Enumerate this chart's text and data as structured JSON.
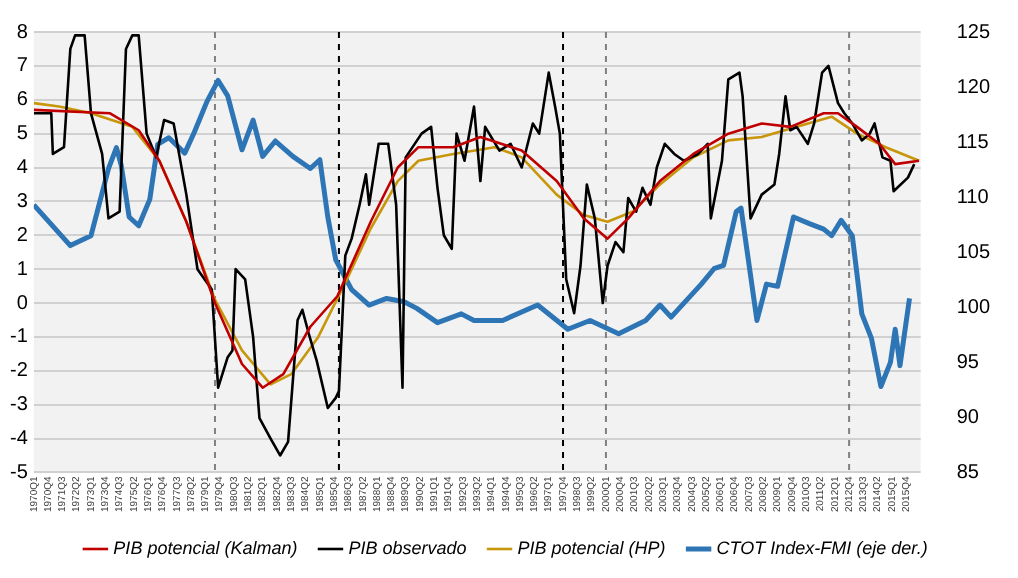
{
  "chart_data": {
    "type": "line",
    "marker": "none",
    "grid": "y",
    "legend": "bottom",
    "xlim": [
      "1970-01",
      "2016-07"
    ],
    "xticks": [
      {
        "value": "1970-01",
        "label": "1970Q1"
      },
      {
        "value": "1970-10",
        "label": "1970Q4"
      },
      {
        "value": "1971-07",
        "label": "1971Q3"
      },
      {
        "value": "1972-04",
        "label": "1972Q2"
      },
      {
        "value": "1973-01",
        "label": "1973Q1"
      },
      {
        "value": "1973-10",
        "label": "1973Q4"
      },
      {
        "value": "1974-07",
        "label": "1974Q3"
      },
      {
        "value": "1975-04",
        "label": "1975Q2"
      },
      {
        "value": "1976-01",
        "label": "1976Q1"
      },
      {
        "value": "1976-10",
        "label": "1976Q4"
      },
      {
        "value": "1977-07",
        "label": "1977Q3"
      },
      {
        "value": "1978-04",
        "label": "1978Q2"
      },
      {
        "value": "1979-01",
        "label": "1979Q1"
      },
      {
        "value": "1979-10",
        "label": "1979Q4"
      },
      {
        "value": "1980-07",
        "label": "1980Q3"
      },
      {
        "value": "1981-04",
        "label": "1981Q2"
      },
      {
        "value": "1982-01",
        "label": "1982Q1"
      },
      {
        "value": "1982-10",
        "label": "1982Q4"
      },
      {
        "value": "1983-07",
        "label": "1983Q3"
      },
      {
        "value": "1984-04",
        "label": "1984Q2"
      },
      {
        "value": "1985-01",
        "label": "1985Q1"
      },
      {
        "value": "1985-10",
        "label": "1985Q4"
      },
      {
        "value": "1986-07",
        "label": "1986Q3"
      },
      {
        "value": "1987-04",
        "label": "1987Q2"
      },
      {
        "value": "1988-01",
        "label": "1988Q1"
      },
      {
        "value": "1988-10",
        "label": "1988Q4"
      },
      {
        "value": "1989-07",
        "label": "1989Q3"
      },
      {
        "value": "1990-04",
        "label": "1990Q2"
      },
      {
        "value": "1991-01",
        "label": "1991Q1"
      },
      {
        "value": "1991-10",
        "label": "1991Q4"
      },
      {
        "value": "1992-07",
        "label": "1992Q3"
      },
      {
        "value": "1993-04",
        "label": "1993Q2"
      },
      {
        "value": "1994-01",
        "label": "1994Q1"
      },
      {
        "value": "1994-10",
        "label": "1994Q4"
      },
      {
        "value": "1995-07",
        "label": "1995Q3"
      },
      {
        "value": "1996-04",
        "label": "1996Q2"
      },
      {
        "value": "1997-01",
        "label": "1997Q1"
      },
      {
        "value": "1997-10",
        "label": "1997Q4"
      },
      {
        "value": "1998-07",
        "label": "1998Q3"
      },
      {
        "value": "1999-04",
        "label": "1999Q2"
      },
      {
        "value": "2000-01",
        "label": "2000Q1"
      },
      {
        "value": "2000-10",
        "label": "2000Q4"
      },
      {
        "value": "2001-07",
        "label": "2001Q3"
      },
      {
        "value": "2002-04",
        "label": "2002Q2"
      },
      {
        "value": "2003-01",
        "label": "2003Q1"
      },
      {
        "value": "2003-10",
        "label": "2003Q4"
      },
      {
        "value": "2004-07",
        "label": "2004Q3"
      },
      {
        "value": "2005-04",
        "label": "2005Q2"
      },
      {
        "value": "2006-01",
        "label": "2006Q1"
      },
      {
        "value": "2006-10",
        "label": "2006Q4"
      },
      {
        "value": "2007-07",
        "label": "2007Q3"
      },
      {
        "value": "2008-04",
        "label": "2008Q2"
      },
      {
        "value": "2009-01",
        "label": "2009Q1"
      },
      {
        "value": "2009-10",
        "label": "2009Q4"
      },
      {
        "value": "2010-07",
        "label": "2010Q3"
      },
      {
        "value": "2011-04",
        "label": "2011Q2"
      },
      {
        "value": "2012-01",
        "label": "2012Q1"
      },
      {
        "value": "2012-10",
        "label": "2012Q4"
      },
      {
        "value": "2013-07",
        "label": "2013Q3"
      },
      {
        "value": "2014-04",
        "label": "2014Q2"
      },
      {
        "value": "2015-01",
        "label": "2015Q1"
      },
      {
        "value": "2015-10",
        "label": "2015Q4"
      }
    ],
    "ylim": [
      -5,
      8
    ],
    "yticks": [
      -5,
      -4,
      -3,
      -2,
      -1,
      0,
      1,
      2,
      3,
      4,
      5,
      6,
      7,
      8
    ],
    "y2lim": [
      85,
      125
    ],
    "y2ticks": [
      85,
      90,
      95,
      100,
      105,
      110,
      115,
      120,
      125
    ],
    "ref_lines": [
      {
        "axis": "x",
        "value": "1979-07",
        "color": "#808080",
        "line_style": "dashed"
      },
      {
        "axis": "x",
        "value": "1986-01",
        "color": "#000000",
        "line_style": "dashed"
      },
      {
        "axis": "x",
        "value": "1997-10",
        "color": "#000000",
        "line_style": "dashed"
      },
      {
        "axis": "x",
        "value": "2000-01",
        "color": "#808080",
        "line_style": "dashed"
      },
      {
        "axis": "x",
        "value": "2012-10",
        "color": "#808080",
        "line_style": "dashed"
      }
    ],
    "series": [
      {
        "name": "PIB potencial (Kalman)",
        "color": "#c00000",
        "x": [
          "1970-01",
          "1974-01",
          "1975-07",
          "1976-08",
          "1978-01",
          "1979-07",
          "1980-12",
          "1982-01",
          "1983-02",
          "1984-07",
          "1985-12",
          "1987-09",
          "1989-02",
          "1990-03",
          "1992-01",
          "1993-06",
          "1995-08",
          "1997-06",
          "1998-11",
          "2000-02",
          "2001-03",
          "2002-11",
          "2004-08",
          "2006-06",
          "2008-03",
          "2009-09",
          "2011-06",
          "2012-03",
          "2013-03",
          "2014-05",
          "2015-03",
          "2016-06"
        ],
        "values": [
          5.7,
          5.6,
          5.1,
          4.2,
          2.4,
          0,
          -1.8,
          -2.5,
          -2.1,
          -0.7,
          0.2,
          2.4,
          4,
          4.6,
          4.6,
          4.9,
          4.5,
          3.6,
          2.5,
          1.9,
          2.5,
          3.6,
          4.4,
          5,
          5.3,
          5.2,
          5.6,
          5.6,
          5.2,
          4.7,
          4.1,
          4.2
        ]
      },
      {
        "name": "PIB observado",
        "color": "#000000",
        "x": [
          "1970-01",
          "1970-12",
          "1971-01",
          "1971-08",
          "1971-12",
          "1972-03",
          "1972-09",
          "1973-01",
          "1973-08",
          "1973-12",
          "1974-07",
          "1974-11",
          "1975-03",
          "1975-07",
          "1975-12",
          "1976-06",
          "1976-11",
          "1977-05",
          "1978-01",
          "1978-08",
          "1979-05",
          "1979-09",
          "1980-03",
          "1980-06",
          "1980-08",
          "1981-02",
          "1981-07",
          "1981-11",
          "1982-06",
          "1982-12",
          "1983-05",
          "1983-11",
          "1984-02",
          "1984-06",
          "1984-11",
          "1985-06",
          "1985-11",
          "1986-01",
          "1986-05",
          "1986-09",
          "1987-02",
          "1987-06",
          "1987-08",
          "1988-02",
          "1988-08",
          "1989-01",
          "1989-05",
          "1989-07",
          "1990-05",
          "1990-11",
          "1991-03",
          "1991-07",
          "1991-12",
          "1992-03",
          "1992-08",
          "1993-02",
          "1993-06",
          "1993-09",
          "1994-06",
          "1995-01",
          "1995-08",
          "1996-03",
          "1996-07",
          "1997-01",
          "1997-05",
          "1997-08",
          "1997-12",
          "1998-05",
          "1998-09",
          "1999-01",
          "1999-06",
          "1999-11",
          "2000-02",
          "2000-07",
          "2000-12",
          "2001-03",
          "2001-08",
          "2001-12",
          "2002-05",
          "2002-09",
          "2003-02",
          "2003-08",
          "2004-02",
          "2004-11",
          "2005-05",
          "2005-07",
          "2006-02",
          "2006-06",
          "2007-01",
          "2007-03",
          "2007-08",
          "2008-03",
          "2008-11",
          "2009-02",
          "2009-06",
          "2009-09",
          "2010-01",
          "2010-08",
          "2010-12",
          "2011-05",
          "2011-09",
          "2012-03",
          "2012-07",
          "2012-12",
          "2013-06",
          "2013-11",
          "2014-02",
          "2014-07",
          "2014-12",
          "2015-02",
          "2015-11",
          "2016-03"
        ],
        "values": [
          5.6,
          5.6,
          4.4,
          4.6,
          7.5,
          7.9,
          7.9,
          5.6,
          4.4,
          2.5,
          2.7,
          7.5,
          7.9,
          7.9,
          5,
          4.3,
          5.4,
          5.3,
          3.2,
          1,
          0.4,
          -2.5,
          -1.6,
          -1.4,
          1,
          0.7,
          -1,
          -3.4,
          -4,
          -4.5,
          -4.1,
          -0.5,
          -0.2,
          -0.9,
          -1.7,
          -3.1,
          -2.8,
          -2.6,
          1.4,
          1.9,
          2.9,
          3.8,
          2.9,
          4.7,
          4.7,
          2.9,
          -2.5,
          4.3,
          5,
          5.2,
          3.4,
          2,
          1.6,
          5,
          4.2,
          5.8,
          3.6,
          5.2,
          4.5,
          4.7,
          4,
          5.3,
          5,
          6.8,
          5.8,
          5,
          0.7,
          -0.3,
          1.1,
          3.5,
          2.5,
          0,
          1.1,
          1.8,
          1.5,
          3.1,
          2.7,
          3.4,
          2.9,
          4,
          4.7,
          4.4,
          4.2,
          4.4,
          4.7,
          2.5,
          4.2,
          6.6,
          6.8,
          6.1,
          2.5,
          3.2,
          3.5,
          4.4,
          6.1,
          5.1,
          5.2,
          4.7,
          5.3,
          6.8,
          7,
          5.9,
          5.6,
          5.3,
          4.8,
          5,
          5.3,
          4.3,
          4.2,
          3.3,
          3.7,
          4.1
        ]
      },
      {
        "name": "PIB potencial (HP)",
        "color": "#c8960a",
        "x": [
          "1970-01",
          "1971-05",
          "1973-01",
          "1975-03",
          "1976-08",
          "1978-01",
          "1979-07",
          "1980-12",
          "1982-06",
          "1983-07",
          "1984-12",
          "1986-05",
          "1987-09",
          "1989-02",
          "1990-03",
          "1992-01",
          "1994-03",
          "1995-08",
          "1997-06",
          "1998-11",
          "2000-02",
          "2001-06",
          "2002-11",
          "2004-08",
          "2006-06",
          "2008-03",
          "2010-01",
          "2011-11",
          "2013-03",
          "2014-09",
          "2016-06"
        ],
        "values": [
          5.9,
          5.8,
          5.6,
          5.2,
          4.2,
          2.4,
          0.1,
          -1.4,
          -2.4,
          -2.1,
          -1,
          0.6,
          2.2,
          3.6,
          4.2,
          4.4,
          4.6,
          4.3,
          3.2,
          2.6,
          2.4,
          2.7,
          3.5,
          4.3,
          4.8,
          4.9,
          5.2,
          5.5,
          5,
          4.6,
          4.2
        ]
      },
      {
        "name": "CTOT Index-FMI (eje der.)",
        "color": "#2e75b6",
        "axis": "y2",
        "x": [
          "1970-01",
          "1971-12",
          "1973-01",
          "1973-12",
          "1974-05",
          "1974-08",
          "1975-01",
          "1975-07",
          "1976-02",
          "1976-07",
          "1977-02",
          "1977-12",
          "1978-06",
          "1979-02",
          "1979-09",
          "1980-03",
          "1980-12",
          "1981-07",
          "1982-01",
          "1982-09",
          "1983-08",
          "1984-07",
          "1985-01",
          "1985-06",
          "1985-11",
          "1986-02",
          "1986-09",
          "1987-08",
          "1988-07",
          "1989-06",
          "1990-02",
          "1991-03",
          "1992-06",
          "1993-02",
          "1994-08",
          "1996-06",
          "1998-01",
          "1999-03",
          "2000-09",
          "2002-02",
          "2002-11",
          "2003-06",
          "2005-01",
          "2005-09",
          "2006-03",
          "2006-11",
          "2007-02",
          "2007-12",
          "2008-06",
          "2009-01",
          "2009-11",
          "2010-09",
          "2011-06",
          "2011-11",
          "2012-05",
          "2012-12",
          "2013-06",
          "2013-12",
          "2014-06",
          "2014-12",
          "2015-03",
          "2015-06",
          "2015-12"
        ],
        "values": [
          109.3,
          105.6,
          106.5,
          112.6,
          114.5,
          112.9,
          108.2,
          107.4,
          109.8,
          114.8,
          115.4,
          114,
          115.9,
          118.7,
          120.6,
          119.2,
          114.3,
          117,
          113.7,
          115.1,
          113.7,
          112.6,
          113.4,
          108.2,
          104.3,
          103.5,
          101.6,
          100.2,
          100.8,
          100.5,
          99.9,
          98.6,
          99.4,
          98.8,
          98.8,
          100.2,
          98,
          98.8,
          97.6,
          98.8,
          100.2,
          99.1,
          102.1,
          103.5,
          103.8,
          108.7,
          109,
          98.8,
          102.1,
          101.9,
          108.2,
          107.6,
          107.1,
          106.5,
          107.9,
          106.5,
          99.4,
          97.2,
          92.8,
          95,
          98,
          94.7,
          100.8
        ]
      }
    ]
  }
}
